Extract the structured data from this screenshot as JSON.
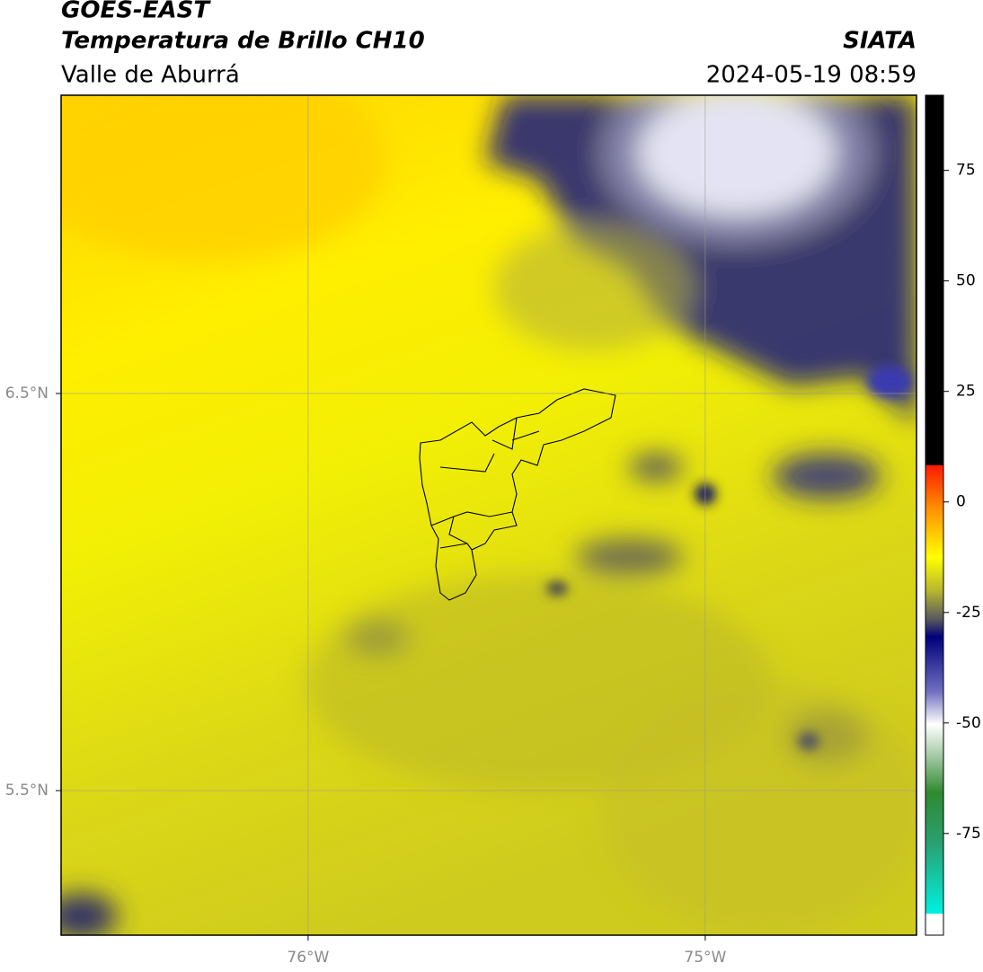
{
  "header": {
    "title": "GOES-EAST",
    "subtitle": "Temperatura de Brillo CH10",
    "region": "Valle de Aburrá",
    "source": "SIATA",
    "datetime": "2024-05-19 08:59"
  },
  "map": {
    "xlim": [
      -76.622,
      -74.468
    ],
    "ylim": [
      5.136,
      7.251
    ],
    "xticks": [
      {
        "value": -76,
        "label": "76°W"
      },
      {
        "value": -75,
        "label": "75°W"
      }
    ],
    "yticks": [
      {
        "value": 6.5,
        "label": "6.5°N"
      },
      {
        "value": 5.5,
        "label": "5.5°N"
      }
    ],
    "grid": true
  },
  "colorbar": {
    "lim": [
      -98,
      92
    ],
    "ticks": [
      75,
      50,
      25,
      0,
      -25,
      -50,
      -75
    ]
  }
}
